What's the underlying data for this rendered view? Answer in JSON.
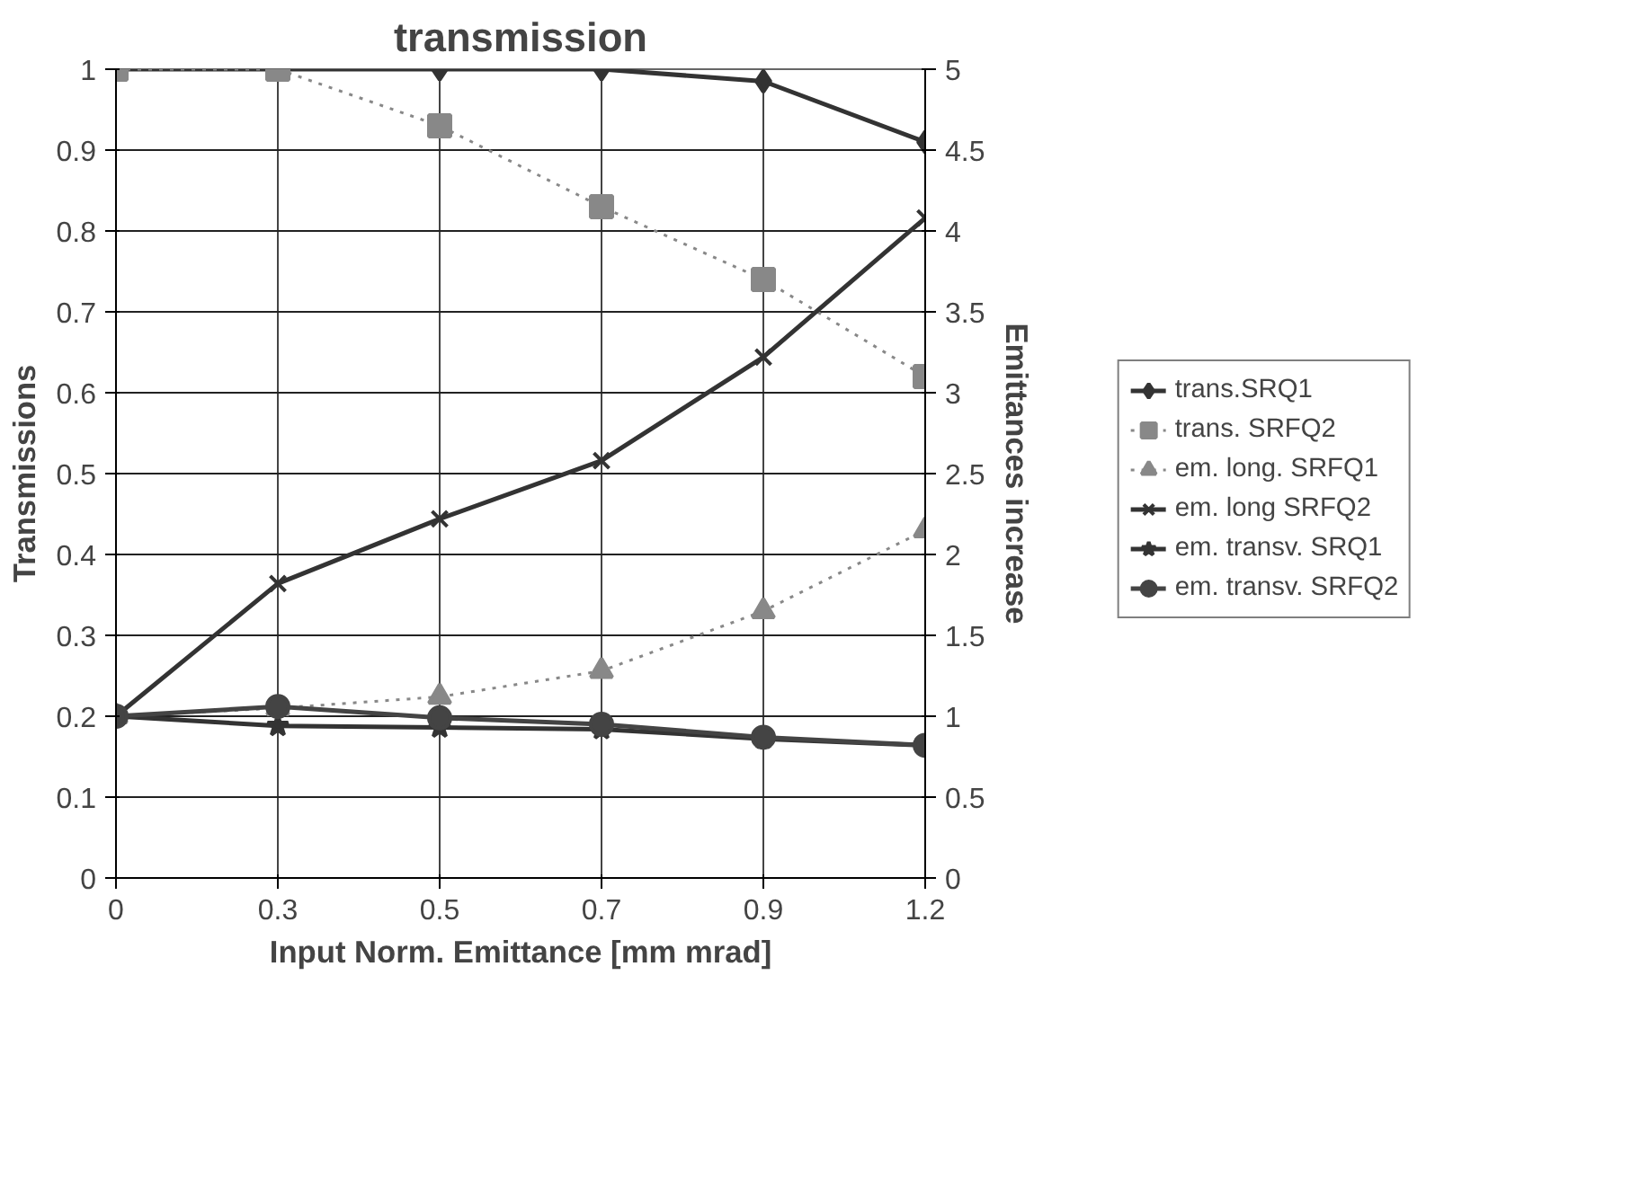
{
  "chart_data": {
    "type": "line",
    "title": "transmission",
    "xlabel": "Input Norm. Emittance [mm mrad]",
    "ylabel": "Transmissions",
    "y2label": "Emittances increase",
    "categories": [
      "0",
      "0.3",
      "0.5",
      "0.7",
      "0.9",
      "1.2"
    ],
    "ylim": [
      0,
      1
    ],
    "yticks": [
      0,
      0.1,
      0.2,
      0.3,
      0.4,
      0.5,
      0.6,
      0.7,
      0.8,
      0.9,
      1
    ],
    "y2lim": [
      0,
      5
    ],
    "y2ticks": [
      0,
      0.5,
      1,
      1.5,
      2,
      2.5,
      3,
      3.5,
      4,
      4.5,
      5
    ],
    "grid": true,
    "legend": "right",
    "series": [
      {
        "name": "trans.SRQ1",
        "color": "#333333",
        "marker": "diamond",
        "line_style": "solid",
        "values": [
          1,
          1,
          1,
          1,
          0.985,
          0.91
        ]
      },
      {
        "name": "trans. SRFQ2",
        "color": "#888888",
        "marker": "square",
        "line_style": "dotted",
        "values": [
          1,
          1,
          0.93,
          0.83,
          0.74,
          0.62
        ]
      },
      {
        "name": "em. long. SRFQ1",
        "color": "#888888",
        "marker": "triangle",
        "line_style": "dotted",
        "axis": "y2",
        "values": [
          1.0,
          1.05,
          1.12,
          1.28,
          1.65,
          2.15
        ]
      },
      {
        "name": "em. long SRFQ2",
        "color": "#333333",
        "marker": "cross",
        "line_style": "solid",
        "axis": "y2",
        "values": [
          1.0,
          1.82,
          2.22,
          2.58,
          3.22,
          4.08
        ]
      },
      {
        "name": "em. transv. SRQ1",
        "color": "#333333",
        "marker": "star",
        "line_style": "solid",
        "axis": "y2",
        "values": [
          1.0,
          0.94,
          0.93,
          0.92,
          0.86,
          0.82
        ]
      },
      {
        "name": "em. transv. SRFQ2",
        "color": "#444444",
        "marker": "circle",
        "line_style": "solid",
        "axis": "y2",
        "values": [
          1.0,
          1.06,
          0.99,
          0.95,
          0.87,
          0.82
        ]
      }
    ]
  }
}
